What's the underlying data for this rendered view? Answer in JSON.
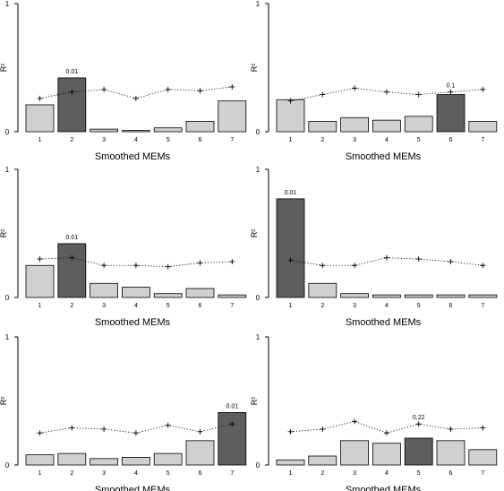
{
  "chart_data": [
    {
      "type": "bar",
      "ylabel": "R²",
      "xlabel": "Smoothed MEMs",
      "ylim": [
        0,
        1
      ],
      "yticks": [
        "0",
        "1"
      ],
      "categories": [
        "1",
        "2",
        "3",
        "4",
        "5",
        "6",
        "7"
      ],
      "values": [
        0.21,
        0.42,
        0.02,
        0.01,
        0.03,
        0.08,
        0.24
      ],
      "highlight_index": 1,
      "annotation": "0.01",
      "threshold_values": [
        0.26,
        0.31,
        0.33,
        0.26,
        0.33,
        0.32,
        0.35
      ],
      "colors": {
        "bar": "#d0d0d0",
        "highlight": "#5e5e5e"
      }
    },
    {
      "type": "bar",
      "ylabel": "R²",
      "xlabel": "Smoothed MEMs",
      "ylim": [
        0,
        1
      ],
      "yticks": [
        "0",
        "1"
      ],
      "categories": [
        "1",
        "2",
        "3",
        "4",
        "5",
        "6",
        "7"
      ],
      "values": [
        0.25,
        0.08,
        0.11,
        0.09,
        0.12,
        0.29,
        0.08
      ],
      "highlight_index": 5,
      "annotation": "0.1",
      "threshold_values": [
        0.24,
        0.29,
        0.34,
        0.31,
        0.29,
        0.31,
        0.33
      ],
      "colors": {
        "bar": "#d0d0d0",
        "highlight": "#5e5e5e"
      }
    },
    {
      "type": "bar",
      "ylabel": "R²",
      "xlabel": "Smoothed MEMs",
      "ylim": [
        0,
        1
      ],
      "yticks": [
        "0",
        "1"
      ],
      "categories": [
        "1",
        "2",
        "3",
        "4",
        "5",
        "6",
        "7"
      ],
      "values": [
        0.25,
        0.42,
        0.11,
        0.08,
        0.03,
        0.07,
        0.02
      ],
      "highlight_index": 1,
      "annotation": "0.01",
      "threshold_values": [
        0.3,
        0.31,
        0.25,
        0.25,
        0.24,
        0.27,
        0.28
      ],
      "colors": {
        "bar": "#d0d0d0",
        "highlight": "#5e5e5e"
      }
    },
    {
      "type": "bar",
      "ylabel": "R²",
      "xlabel": "Smoothed MEMs",
      "ylim": [
        0,
        1
      ],
      "yticks": [
        "0",
        "1"
      ],
      "categories": [
        "1",
        "2",
        "3",
        "4",
        "5",
        "6",
        "7"
      ],
      "values": [
        0.77,
        0.11,
        0.03,
        0.02,
        0.02,
        0.02,
        0.02
      ],
      "highlight_index": 0,
      "annotation": "0.01",
      "threshold_values": [
        0.29,
        0.25,
        0.25,
        0.31,
        0.3,
        0.28,
        0.25
      ],
      "colors": {
        "bar": "#d0d0d0",
        "highlight": "#5e5e5e"
      }
    },
    {
      "type": "bar",
      "ylabel": "R²",
      "xlabel": "Smoothed MEMs",
      "ylim": [
        0,
        1
      ],
      "yticks": [
        "0",
        "1"
      ],
      "categories": [
        "1",
        "2",
        "3",
        "4",
        "5",
        "6",
        "7"
      ],
      "values": [
        0.08,
        0.09,
        0.05,
        0.06,
        0.09,
        0.19,
        0.41
      ],
      "highlight_index": 6,
      "annotation": "0.01",
      "threshold_values": [
        0.25,
        0.29,
        0.28,
        0.25,
        0.31,
        0.26,
        0.32
      ],
      "colors": {
        "bar": "#d0d0d0",
        "highlight": "#5e5e5e"
      }
    },
    {
      "type": "bar",
      "ylabel": "R²",
      "xlabel": "Smoothed MEMs",
      "ylim": [
        0,
        1
      ],
      "yticks": [
        "0",
        "1"
      ],
      "categories": [
        "1",
        "2",
        "3",
        "4",
        "5",
        "6",
        "7"
      ],
      "values": [
        0.04,
        0.07,
        0.19,
        0.17,
        0.21,
        0.19,
        0.12
      ],
      "highlight_index": 4,
      "annotation": "0.22",
      "threshold_values": [
        0.26,
        0.28,
        0.34,
        0.25,
        0.32,
        0.28,
        0.29
      ],
      "colors": {
        "bar": "#d0d0d0",
        "highlight": "#5e5e5e"
      }
    }
  ]
}
